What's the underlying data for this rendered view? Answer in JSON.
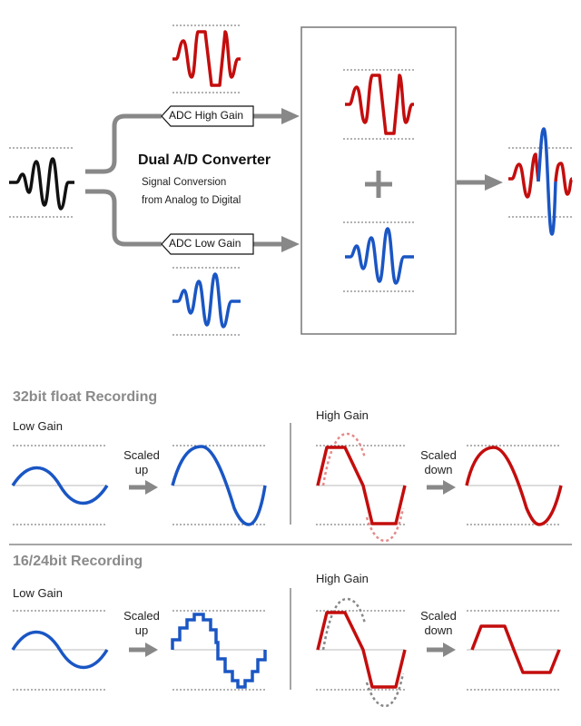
{
  "converter": {
    "title": "Dual A/D Converter",
    "subtitle_line1": "Signal Conversion",
    "subtitle_line2": "from Analog to Digital",
    "high_tag": "ADC High Gain",
    "low_tag": "ADC Low Gain",
    "plus": "+"
  },
  "section_32": {
    "title": "32bit float Recording",
    "low_label": "Low Gain",
    "high_label": "High Gain",
    "scaled_up_1": "Scaled",
    "scaled_up_2": "up",
    "scaled_down_1": "Scaled",
    "scaled_down_2": "down"
  },
  "section_16": {
    "title": "16/24bit Recording",
    "low_label": "Low Gain",
    "high_label": "High Gain",
    "scaled_up_1": "Scaled",
    "scaled_up_2": "up",
    "scaled_down_1": "Scaled",
    "scaled_down_2": "down"
  },
  "colors": {
    "red": "#c40d0d",
    "blue": "#1a56c4",
    "black": "#111111",
    "gray_arrow": "#888888",
    "pink_dotted": "#e68a8a",
    "gray_dotted": "#888888"
  }
}
